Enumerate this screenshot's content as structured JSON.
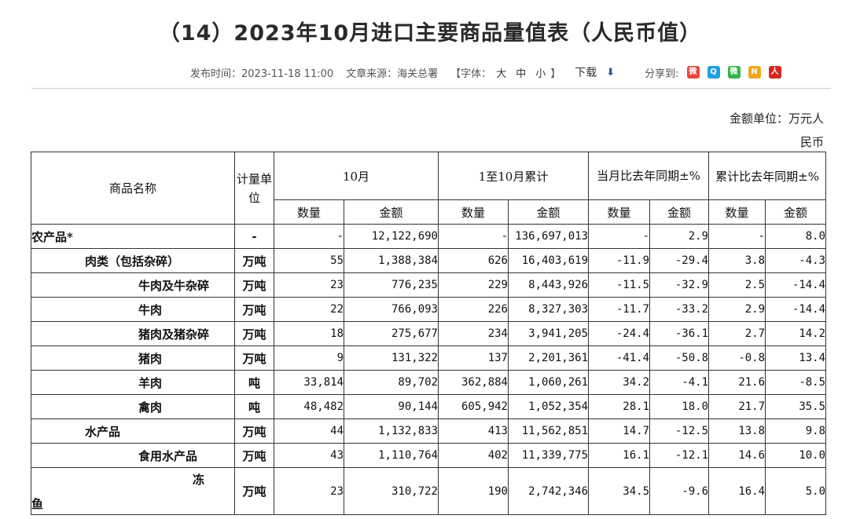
{
  "title": "（14）2023年10月进口主要商品量值表（人民币值）",
  "meta": {
    "publish": "发布时间：2023-11-18 11:00",
    "source": "文章来源：海关总署",
    "font_open": "【字体：",
    "font_large": "大",
    "font_mid": "中",
    "font_small": "小",
    "font_close": "】",
    "download": "下载",
    "download_icon": "⬇",
    "share": "分享到:"
  },
  "unit_line1": "金额单位：万元人",
  "unit_line2": "民币",
  "header": {
    "name": "商品名称",
    "unit": "计量单位",
    "month": "10月",
    "cum": "1至10月累计",
    "yoy_month": "当月比去年同期±%",
    "yoy_cum": "累计比去年同期±%",
    "qty": "数量",
    "amt": "金额"
  },
  "rows": [
    {
      "name": "农产品*",
      "indent": 0,
      "unit": "-",
      "q": "-",
      "a": "12,122,690",
      "cq": "-",
      "ca": "136,697,013",
      "yq": "-",
      "ya": "2.9",
      "cyq": "-",
      "cya": "8.0"
    },
    {
      "name": "肉类（包括杂碎）",
      "indent": 1,
      "unit": "万吨",
      "q": "55",
      "a": "1,388,384",
      "cq": "626",
      "ca": "16,403,619",
      "yq": "-11.9",
      "ya": "-29.4",
      "cyq": "3.8",
      "cya": "-4.3"
    },
    {
      "name": "牛肉及牛杂碎",
      "indent": 2,
      "unit": "万吨",
      "q": "23",
      "a": "776,235",
      "cq": "229",
      "ca": "8,443,926",
      "yq": "-11.5",
      "ya": "-32.9",
      "cyq": "2.5",
      "cya": "-14.4"
    },
    {
      "name": "牛肉",
      "indent": 2,
      "unit": "万吨",
      "q": "22",
      "a": "766,093",
      "cq": "226",
      "ca": "8,327,303",
      "yq": "-11.7",
      "ya": "-33.2",
      "cyq": "2.9",
      "cya": "-14.4"
    },
    {
      "name": "猪肉及猪杂碎",
      "indent": 2,
      "unit": "万吨",
      "q": "18",
      "a": "275,677",
      "cq": "234",
      "ca": "3,941,205",
      "yq": "-24.4",
      "ya": "-36.1",
      "cyq": "2.7",
      "cya": "14.2"
    },
    {
      "name": "猪肉",
      "indent": 2,
      "unit": "万吨",
      "q": "9",
      "a": "131,322",
      "cq": "137",
      "ca": "2,201,361",
      "yq": "-41.4",
      "ya": "-50.8",
      "cyq": "-0.8",
      "cya": "13.4"
    },
    {
      "name": "羊肉",
      "indent": 2,
      "unit": "吨",
      "q": "33,814",
      "a": "89,702",
      "cq": "362,884",
      "ca": "1,060,261",
      "yq": "34.2",
      "ya": "-4.1",
      "cyq": "21.6",
      "cya": "-8.5"
    },
    {
      "name": "禽肉",
      "indent": 2,
      "unit": "吨",
      "q": "48,482",
      "a": "90,144",
      "cq": "605,942",
      "ca": "1,052,354",
      "yq": "28.1",
      "ya": "18.0",
      "cyq": "21.7",
      "cya": "35.5"
    },
    {
      "name": "水产品",
      "indent": 1,
      "unit": "万吨",
      "q": "44",
      "a": "1,132,833",
      "cq": "413",
      "ca": "11,562,851",
      "yq": "14.7",
      "ya": "-12.5",
      "cyq": "13.8",
      "cya": "9.8"
    },
    {
      "name": "食用水产品",
      "indent": 2,
      "unit": "万吨",
      "q": "43",
      "a": "1,110,764",
      "cq": "402",
      "ca": "11,339,775",
      "yq": "16.1",
      "ya": "-12.1",
      "cyq": "14.6",
      "cya": "10.0"
    },
    {
      "name": "冻",
      "name2": "鱼",
      "indent": 3,
      "unit": "万吨",
      "q": "23",
      "a": "310,722",
      "cq": "190",
      "ca": "2,742,346",
      "yq": "34.5",
      "ya": "-9.6",
      "cyq": "16.4",
      "cya": "5.0"
    }
  ]
}
